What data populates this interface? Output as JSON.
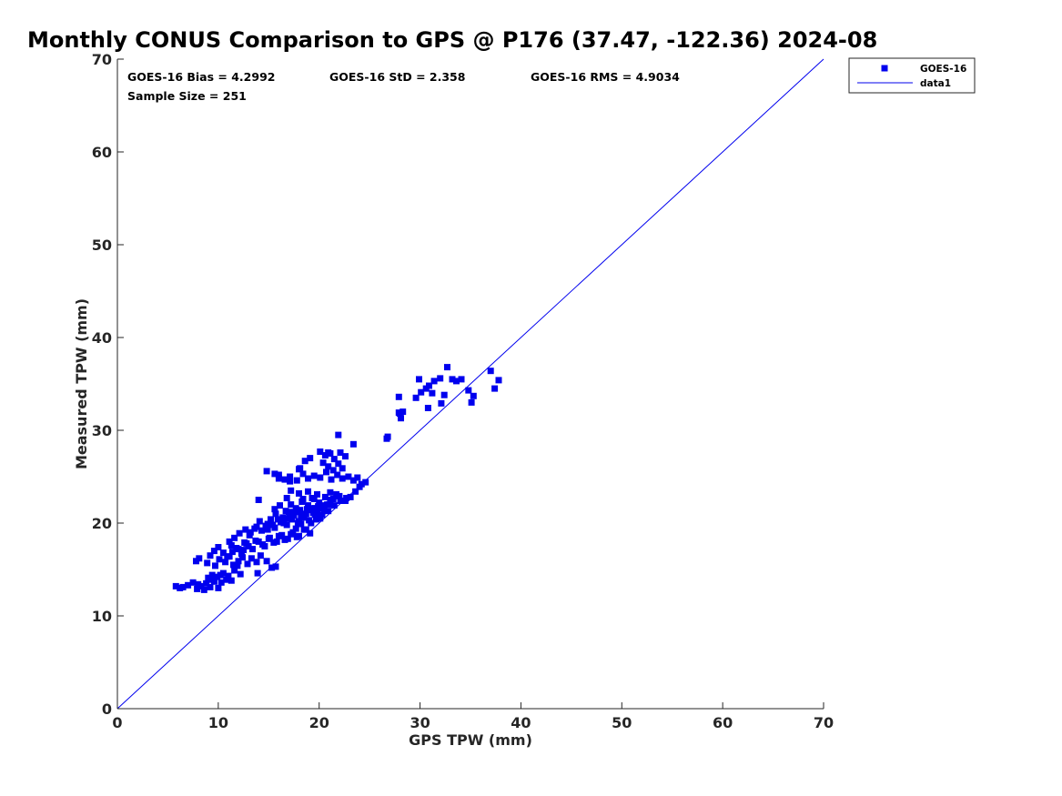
{
  "chart_data": {
    "type": "scatter",
    "title": "Monthly CONUS Comparison to GPS @ P176 (37.47, -122.36) 2024-08",
    "xlabel": "GPS TPW (mm)",
    "ylabel": "Measured TPW (mm)",
    "xlim": [
      0,
      70
    ],
    "ylim": [
      0,
      70
    ],
    "xticks": [
      0,
      10,
      20,
      30,
      40,
      50,
      60,
      70
    ],
    "yticks": [
      0,
      10,
      20,
      30,
      40,
      50,
      60,
      70
    ],
    "grid": false,
    "legend_position": "top-right",
    "colors": {
      "marker": "#0000ee",
      "line": "#0000ee",
      "axis": "#262626"
    },
    "stats": {
      "bias": "GOES-16 Bias = 4.2992",
      "std": "GOES-16 StD = 2.358",
      "rms": "GOES-16 RMS = 4.9034",
      "sample": "Sample Size = 251"
    },
    "series": [
      {
        "name": "GOES-16",
        "kind": "scatter",
        "marker": "square",
        "x": [
          5.8,
          6.2,
          6.5,
          7.0,
          7.5,
          8.0,
          8.3,
          8.8,
          9.2,
          9.6,
          10.0,
          10.3,
          10.8,
          11.3,
          9.0,
          9.4,
          9.9,
          10.5,
          11.0,
          11.6,
          12.2,
          7.9,
          8.6,
          9.3,
          10.2,
          7.8,
          8.1,
          8.9,
          9.2,
          9.7,
          10.1,
          10.7,
          11.1,
          11.5,
          12.0,
          12.4,
          12.9,
          13.3,
          13.8,
          14.2,
          14.8,
          15.3,
          9.6,
          10.0,
          10.5,
          11.3,
          12.0,
          12.6,
          13.0,
          13.7,
          14.4,
          15.0,
          15.5,
          16.0,
          16.6,
          17.2,
          17.8,
          10.9,
          11.4,
          11.8,
          12.3,
          12.8,
          13.4,
          14.0,
          14.6,
          15.1,
          15.8,
          16.3,
          16.9,
          17.4,
          18.0,
          18.5,
          19.1,
          11.1,
          11.6,
          12.1,
          12.7,
          13.2,
          13.8,
          14.3,
          14.9,
          15.6,
          16.2,
          16.8,
          17.3,
          17.9,
          18.4,
          19.0,
          19.6,
          20.1,
          12.5,
          13.1,
          13.6,
          14.1,
          14.7,
          15.2,
          15.7,
          16.4,
          17.0,
          17.5,
          18.1,
          18.7,
          19.3,
          19.8,
          20.4,
          14.9,
          15.4,
          15.9,
          16.5,
          17.1,
          17.6,
          18.2,
          18.8,
          19.4,
          19.9,
          20.5,
          21.0,
          15.6,
          16.1,
          16.7,
          17.2,
          17.7,
          18.3,
          18.9,
          19.5,
          20.0,
          20.6,
          21.1,
          21.7,
          16.0,
          16.6,
          17.1,
          17.8,
          18.4,
          18.9,
          19.5,
          20.1,
          20.7,
          21.2,
          21.8,
          22.3,
          22.9,
          23.4,
          23.8,
          24.2,
          24.6,
          16.9,
          17.4,
          18.0,
          18.5,
          19.1,
          19.7,
          20.2,
          20.8,
          21.4,
          22.0,
          22.6,
          23.1,
          23.6,
          24.0,
          17.7,
          18.2,
          18.7,
          19.2,
          19.7,
          20.3,
          20.9,
          21.5,
          22.1,
          22.7,
          18.0,
          18.4,
          18.9,
          19.3,
          19.8,
          20.4,
          20.9,
          21.4,
          21.9,
          22.3,
          14.0,
          14.8,
          15.7,
          18.1,
          18.6,
          19.1,
          20.1,
          20.6,
          21.1,
          21.5,
          22.1,
          22.6,
          15.6,
          17.1,
          18.3,
          19.6,
          20.9,
          21.9,
          23.4,
          16.8,
          17.2,
          26.7,
          26.8,
          28.1,
          28.3,
          27.9,
          28.0,
          29.6,
          30.1,
          30.6,
          30.9,
          31.2,
          31.4,
          32.0,
          32.4,
          32.7,
          33.2,
          33.6,
          34.1,
          34.8,
          35.1,
          35.3,
          37.0,
          37.4,
          37.8,
          29.9,
          27.9,
          30.8,
          32.1,
          13.9,
          21.1,
          18.0,
          16.0,
          11.9
        ],
        "y": [
          13.2,
          13.0,
          13.1,
          13.3,
          13.6,
          13.4,
          13.2,
          13.5,
          13.1,
          13.7,
          13.0,
          13.6,
          13.9,
          13.8,
          14.1,
          14.4,
          14.2,
          14.6,
          14.3,
          14.9,
          14.5,
          12.9,
          12.8,
          13.9,
          14.4,
          15.9,
          16.2,
          15.7,
          16.5,
          15.4,
          16.1,
          15.8,
          16.4,
          15.5,
          15.9,
          16.3,
          15.6,
          16.2,
          15.8,
          16.5,
          15.9,
          15.2,
          17.0,
          17.4,
          16.8,
          17.6,
          17.2,
          17.9,
          17.5,
          18.1,
          17.7,
          18.3,
          17.9,
          18.6,
          18.2,
          18.8,
          18.5,
          16.4,
          16.9,
          17.3,
          16.7,
          17.8,
          17.2,
          18.0,
          17.5,
          18.4,
          18.0,
          18.7,
          18.3,
          19.0,
          18.6,
          19.3,
          18.9,
          18.0,
          18.4,
          18.9,
          19.3,
          19.0,
          19.6,
          19.2,
          19.9,
          19.5,
          20.1,
          19.8,
          20.4,
          20.0,
          20.6,
          20.3,
          20.9,
          20.5,
          17.1,
          18.7,
          19.4,
          20.2,
          19.7,
          20.4,
          21.0,
          20.6,
          21.2,
          20.8,
          21.4,
          21.0,
          21.6,
          21.3,
          21.9,
          19.3,
          19.8,
          20.4,
          20.0,
          20.7,
          21.2,
          20.8,
          21.5,
          21.1,
          21.8,
          21.4,
          22.0,
          21.5,
          21.9,
          21.3,
          22.0,
          21.6,
          22.3,
          21.9,
          22.6,
          22.2,
          22.8,
          22.5,
          23.1,
          25.2,
          24.7,
          25.0,
          24.6,
          25.3,
          24.8,
          25.1,
          24.9,
          25.5,
          24.7,
          25.2,
          24.8,
          25.0,
          24.6,
          24.9,
          24.2,
          24.4,
          20.5,
          21.0,
          20.2,
          20.8,
          21.4,
          20.9,
          21.6,
          22.0,
          22.6,
          22.9,
          22.4,
          22.8,
          23.4,
          23.9,
          19.4,
          19.9,
          19.3,
          20.0,
          20.4,
          20.9,
          21.3,
          21.9,
          22.4,
          22.7,
          23.2,
          22.6,
          23.4,
          22.7,
          23.1,
          26.5,
          26.1,
          25.7,
          26.4,
          25.9,
          22.5,
          25.6,
          15.3,
          25.9,
          26.7,
          27.0,
          27.7,
          27.3,
          27.5,
          26.9,
          27.6,
          27.2,
          25.3,
          24.5,
          22.3,
          21.6,
          27.6,
          29.5,
          28.5,
          22.7,
          23.5,
          29.1,
          29.3,
          31.3,
          32.0,
          33.6,
          31.8,
          33.5,
          34.1,
          34.5,
          34.8,
          34.0,
          35.3,
          35.6,
          33.8,
          36.8,
          35.5,
          35.3,
          35.5,
          34.3,
          33.0,
          33.7,
          36.4,
          34.5,
          35.4,
          35.5,
          31.9,
          32.4,
          32.9,
          14.6,
          23.3,
          25.8,
          24.8,
          15.4
        ]
      },
      {
        "name": "data1",
        "kind": "line",
        "x": [
          0,
          70
        ],
        "y": [
          0,
          70
        ]
      }
    ]
  }
}
